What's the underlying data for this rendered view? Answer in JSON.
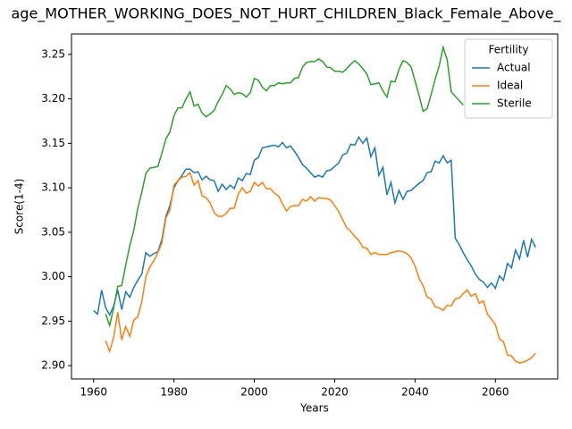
{
  "chart_data": {
    "type": "line",
    "title": "age_MOTHER_WORKING_DOES_NOT_HURT_CHILDREN_Black_Female_Above_",
    "xlabel": "Years",
    "ylabel": "Score(1-4)",
    "legend_title": "Fertility",
    "legend": "upper right",
    "x": [
      1960,
      1961,
      1962,
      1963,
      1964,
      1965,
      1966,
      1967,
      1968,
      1969,
      1970,
      1971,
      1972,
      1973,
      1974,
      1975,
      1976,
      1977,
      1978,
      1979,
      1980,
      1981,
      1982,
      1983,
      1984,
      1985,
      1986,
      1987,
      1988,
      1989,
      1990,
      1991,
      1992,
      1993,
      1994,
      1995,
      1996,
      1997,
      1998,
      1999,
      2000,
      2001,
      2002,
      2003,
      2004,
      2005,
      2006,
      2007,
      2008,
      2009,
      2010,
      2011,
      2012,
      2013,
      2014,
      2015,
      2016,
      2017,
      2018,
      2019,
      2020,
      2021,
      2022,
      2023,
      2024,
      2025,
      2026,
      2027,
      2028,
      2029,
      2030,
      2031,
      2032,
      2033,
      2034,
      2035,
      2036,
      2037,
      2038,
      2039,
      2040,
      2041,
      2042,
      2043,
      2044,
      2045,
      2046,
      2047,
      2048,
      2049,
      2050,
      2051,
      2052,
      2053,
      2054,
      2055,
      2056,
      2057,
      2058,
      2059,
      2060,
      2061,
      2062,
      2063,
      2064,
      2065,
      2066,
      2067,
      2068,
      2069,
      2070
    ],
    "series": [
      {
        "name": "Actual",
        "color": "#1f77b4",
        "values": [
          2.962,
          2.958,
          2.985,
          2.965,
          2.957,
          2.967,
          2.985,
          2.963,
          2.983,
          2.977,
          2.988,
          2.996,
          3.003,
          3.027,
          3.023,
          3.026,
          3.028,
          3.042,
          3.068,
          3.08,
          3.1,
          3.108,
          3.114,
          3.121,
          3.121,
          3.117,
          3.118,
          3.109,
          3.113,
          3.109,
          3.108,
          3.096,
          3.104,
          3.098,
          3.103,
          3.099,
          3.111,
          3.108,
          3.116,
          3.115,
          3.131,
          3.134,
          3.145,
          3.146,
          3.147,
          3.148,
          3.146,
          3.151,
          3.145,
          3.147,
          3.141,
          3.134,
          3.126,
          3.122,
          3.117,
          3.112,
          3.114,
          3.112,
          3.119,
          3.12,
          3.124,
          3.128,
          3.137,
          3.139,
          3.149,
          3.148,
          3.157,
          3.15,
          3.156,
          3.135,
          3.145,
          3.114,
          3.123,
          3.092,
          3.106,
          3.083,
          3.097,
          3.087,
          3.096,
          3.097,
          3.101,
          3.105,
          3.108,
          3.117,
          3.118,
          3.13,
          3.128,
          3.136,
          3.128,
          3.131,
          3.043,
          3.036,
          3.027,
          3.019,
          3.012,
          3.003,
          2.997,
          2.994,
          2.988,
          2.993,
          2.987,
          3.001,
          2.996,
          3.015,
          3.01,
          3.03,
          3.02,
          3.041,
          3.022,
          3.042,
          3.033
        ]
      },
      {
        "name": "Ideal",
        "color": "#ff7f0e",
        "values": [
          null,
          null,
          null,
          2.928,
          2.916,
          2.932,
          2.96,
          2.929,
          2.944,
          2.933,
          2.951,
          2.955,
          2.972,
          3.0,
          3.011,
          3.018,
          3.027,
          3.038,
          3.066,
          3.075,
          3.103,
          3.108,
          3.112,
          3.113,
          3.117,
          3.103,
          3.108,
          3.091,
          3.089,
          3.083,
          3.072,
          3.068,
          3.068,
          3.071,
          3.077,
          3.077,
          3.093,
          3.1,
          3.094,
          3.096,
          3.106,
          3.102,
          3.106,
          3.099,
          3.099,
          3.094,
          3.091,
          3.082,
          3.074,
          3.079,
          3.08,
          3.08,
          3.087,
          3.085,
          3.09,
          3.085,
          3.089,
          3.088,
          3.088,
          3.086,
          3.08,
          3.073,
          3.064,
          3.055,
          3.051,
          3.045,
          3.041,
          3.033,
          3.032,
          3.025,
          3.027,
          3.025,
          3.025,
          3.025,
          3.027,
          3.028,
          3.029,
          3.028,
          3.026,
          3.021,
          3.012,
          2.998,
          2.99,
          2.977,
          2.975,
          2.966,
          2.965,
          2.962,
          2.968,
          2.967,
          2.975,
          2.976,
          2.981,
          2.985,
          2.978,
          2.981,
          2.97,
          2.973,
          2.958,
          2.952,
          2.946,
          2.93,
          2.927,
          2.912,
          2.911,
          2.905,
          2.903,
          2.904,
          2.906,
          2.909,
          2.914
        ]
      },
      {
        "name": "Sterile",
        "color": "#2ca02c",
        "values": [
          null,
          null,
          null,
          2.958,
          2.945,
          2.965,
          2.989,
          2.99,
          3.013,
          3.035,
          3.052,
          3.077,
          3.095,
          3.116,
          3.122,
          3.123,
          3.124,
          3.139,
          3.155,
          3.163,
          3.181,
          3.19,
          3.19,
          3.2,
          3.208,
          3.192,
          3.194,
          3.184,
          3.18,
          3.183,
          3.187,
          3.197,
          3.205,
          3.215,
          3.211,
          3.205,
          3.207,
          3.206,
          3.202,
          3.207,
          3.223,
          3.221,
          3.213,
          3.209,
          3.215,
          3.215,
          3.218,
          3.217,
          3.218,
          3.218,
          3.223,
          3.224,
          3.236,
          3.241,
          3.242,
          3.242,
          3.245,
          3.242,
          3.236,
          3.235,
          3.231,
          3.231,
          3.23,
          3.234,
          3.239,
          3.243,
          3.239,
          3.234,
          3.228,
          3.216,
          3.217,
          3.218,
          3.209,
          3.202,
          3.22,
          3.219,
          3.233,
          3.243,
          3.241,
          3.236,
          3.22,
          3.204,
          3.186,
          3.189,
          3.205,
          3.222,
          3.237,
          3.258,
          3.244,
          3.208,
          3.203,
          3.198,
          3.193,
          null,
          null,
          null,
          null,
          null,
          null,
          null,
          null,
          null,
          null,
          null,
          null,
          null,
          null,
          null,
          null,
          null,
          null
        ]
      }
    ],
    "xlim": [
      1954.5,
      2075.5
    ],
    "xticks": [
      1960,
      1980,
      2000,
      2020,
      2040,
      2060
    ],
    "ylim": [
      2.885,
      3.273
    ],
    "yticks": [
      {
        "value": 2.9,
        "label": "2.90"
      },
      2.95,
      {
        "value": 3.0,
        "label": "3.00"
      },
      3.05,
      {
        "value": 3.1,
        "label": "3.10"
      },
      3.15,
      {
        "value": 3.2,
        "label": "3.20"
      },
      3.25
    ],
    "grid": false
  }
}
